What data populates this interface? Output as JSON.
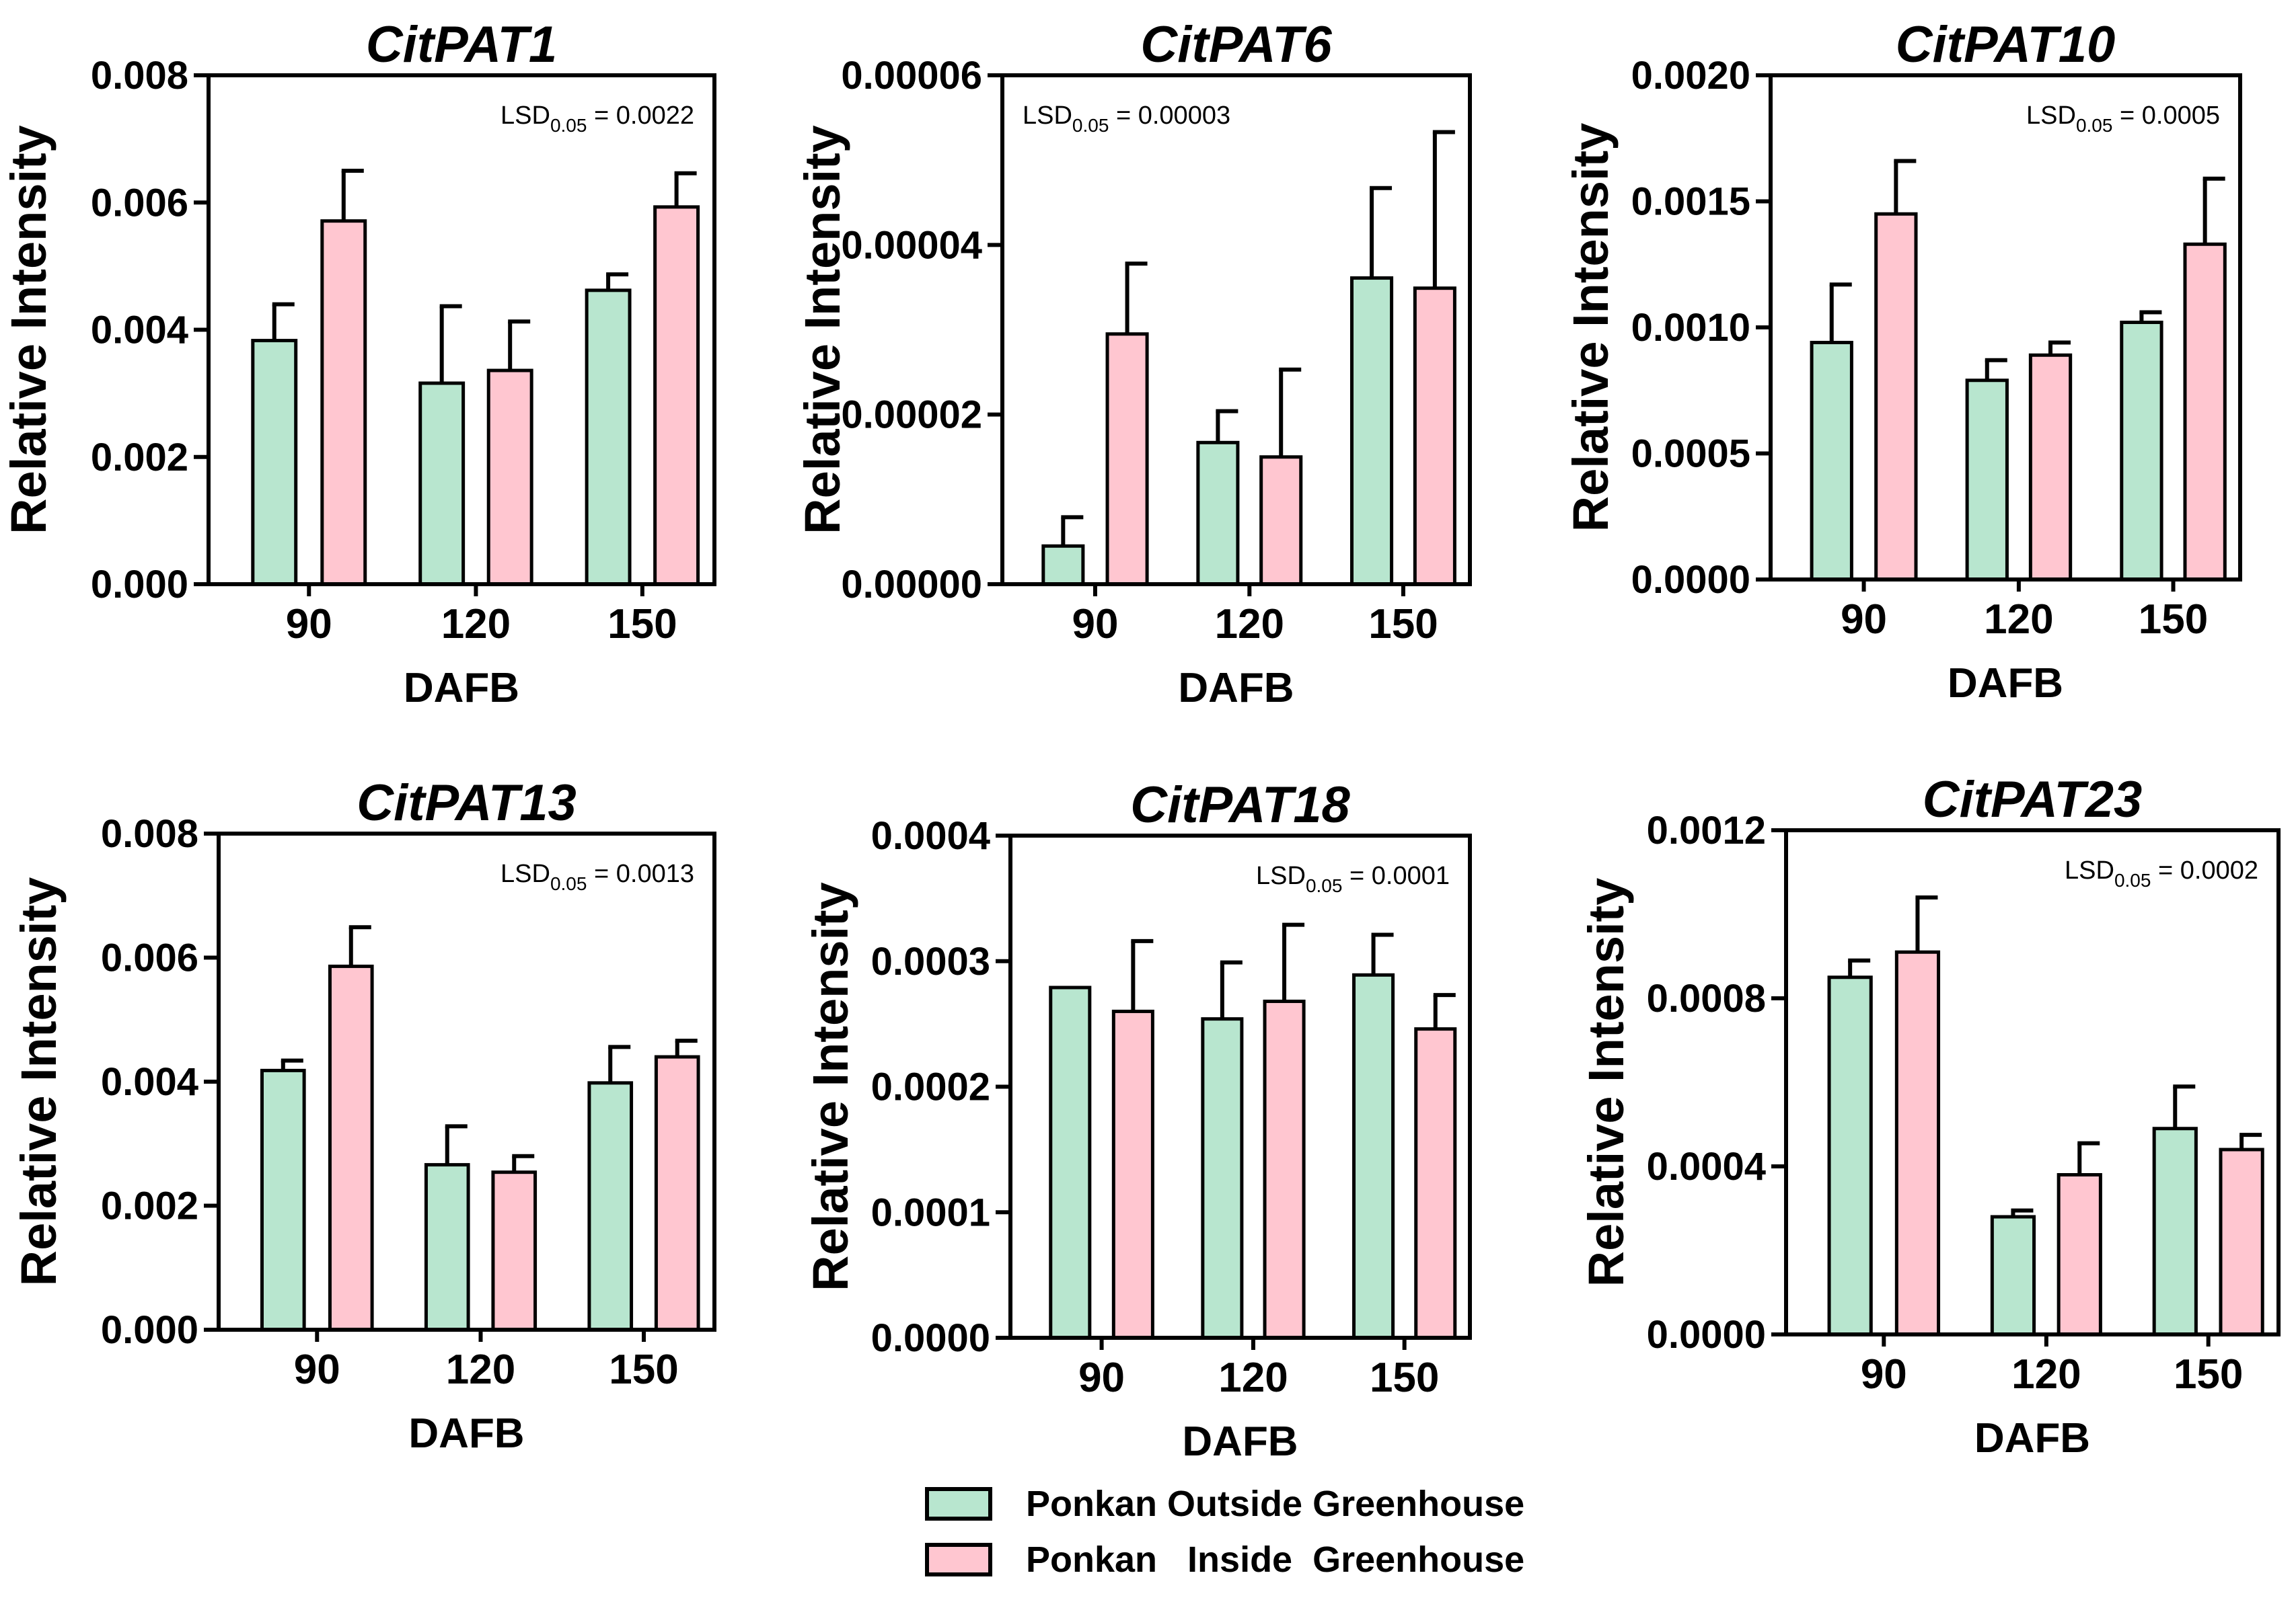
{
  "colors": {
    "outside": "#b8e6cf",
    "inside": "#ffc6d0",
    "stroke": "#000000"
  },
  "legend": {
    "items": [
      {
        "label": "Ponkan Outside Greenhouse",
        "series": "outside"
      },
      {
        "label": "Ponkan   Inside  Greenhouse",
        "series": "inside"
      }
    ]
  },
  "chart_data": [
    {
      "type": "bar",
      "title": "CitPAT1",
      "xlabel": "DAFB",
      "ylabel": "Relative Intensity",
      "categories": [
        "90",
        "120",
        "150"
      ],
      "ylim": [
        0,
        0.008
      ],
      "yticks": [
        "0.000",
        "0.002",
        "0.004",
        "0.006",
        "0.008"
      ],
      "lsd_prefix": "LSD",
      "lsd_sub": "0.05",
      "lsd_value": " = 0.0022",
      "lsd_pos": "top-right",
      "series": [
        {
          "name": "Ponkan Outside Greenhouse",
          "key": "outside",
          "values": [
            0.00383,
            0.00316,
            0.00462
          ],
          "errors": [
            0.00057,
            0.00121,
            0.00025
          ]
        },
        {
          "name": "Ponkan Inside Greenhouse",
          "key": "inside",
          "values": [
            0.00571,
            0.00336,
            0.00593
          ],
          "errors": [
            0.00079,
            0.00077,
            0.00053
          ]
        }
      ]
    },
    {
      "type": "bar",
      "title": "CitPAT6",
      "xlabel": "DAFB",
      "ylabel": "Relative Intensity",
      "categories": [
        "90",
        "120",
        "150"
      ],
      "ylim": [
        0,
        6e-05
      ],
      "yticks": [
        "0.00000",
        "0.00002",
        "0.00004",
        "0.00006"
      ],
      "lsd_prefix": "LSD",
      "lsd_sub": "0.05",
      "lsd_value": " = 0.00003",
      "lsd_pos": "top-left",
      "series": [
        {
          "name": "Ponkan Outside Greenhouse",
          "key": "outside",
          "values": [
            4.5e-06,
            1.67e-05,
            3.61e-05
          ],
          "errors": [
            3.4e-06,
            3.7e-06,
            1.06e-05
          ]
        },
        {
          "name": "Ponkan Inside Greenhouse",
          "key": "inside",
          "values": [
            2.95e-05,
            1.5e-05,
            3.49e-05
          ],
          "errors": [
            8.3e-06,
            1.03e-05,
            1.84e-05
          ]
        }
      ]
    },
    {
      "type": "bar",
      "title": "CitPAT10",
      "xlabel": "DAFB",
      "ylabel": "Relative Intensity",
      "categories": [
        "90",
        "120",
        "150"
      ],
      "ylim": [
        0,
        0.002
      ],
      "yticks": [
        "0.0000",
        "0.0005",
        "0.0010",
        "0.0015",
        "0.0020"
      ],
      "lsd_prefix": "LSD",
      "lsd_sub": "0.05",
      "lsd_value": " = 0.0005",
      "lsd_pos": "top-right",
      "series": [
        {
          "name": "Ponkan Outside Greenhouse",
          "key": "outside",
          "values": [
            0.00094,
            0.00079,
            0.00102
          ],
          "errors": [
            0.00023,
            8e-05,
            4e-05
          ]
        },
        {
          "name": "Ponkan Inside Greenhouse",
          "key": "inside",
          "values": [
            0.00145,
            0.00089,
            0.00133
          ],
          "errors": [
            0.00021,
            5e-05,
            0.00026
          ]
        }
      ]
    },
    {
      "type": "bar",
      "title": "CitPAT13",
      "xlabel": "DAFB",
      "ylabel": "Relative Intensity",
      "categories": [
        "90",
        "120",
        "150"
      ],
      "ylim": [
        0,
        0.008
      ],
      "yticks": [
        "0.000",
        "0.002",
        "0.004",
        "0.006",
        "0.008"
      ],
      "lsd_prefix": "LSD",
      "lsd_sub": "0.05",
      "lsd_value": " = 0.0013",
      "lsd_pos": "top-right",
      "series": [
        {
          "name": "Ponkan Outside Greenhouse",
          "key": "outside",
          "values": [
            0.00418,
            0.00266,
            0.00398
          ],
          "errors": [
            0.00016,
            0.00062,
            0.00058
          ]
        },
        {
          "name": "Ponkan Inside Greenhouse",
          "key": "inside",
          "values": [
            0.00586,
            0.00254,
            0.0044
          ],
          "errors": [
            0.00063,
            0.00026,
            0.00026
          ]
        }
      ]
    },
    {
      "type": "bar",
      "title": "CitPAT18",
      "xlabel": "DAFB",
      "ylabel": "Relative Intensity",
      "categories": [
        "90",
        "120",
        "150"
      ],
      "ylim": [
        0,
        0.0004
      ],
      "yticks": [
        "0.0000",
        "0.0001",
        "0.0002",
        "0.0003",
        "0.0004"
      ],
      "lsd_prefix": "LSD",
      "lsd_sub": "0.05",
      "lsd_value": " = 0.0001",
      "lsd_pos": "top-right",
      "series": [
        {
          "name": "Ponkan Outside Greenhouse",
          "key": "outside",
          "values": [
            0.000279,
            0.000254,
            0.000289
          ],
          "errors": [
            0,
            4.5e-05,
            3.2e-05
          ]
        },
        {
          "name": "Ponkan Inside Greenhouse",
          "key": "inside",
          "values": [
            0.00026,
            0.000268,
            0.000246
          ],
          "errors": [
            5.6e-05,
            6.1e-05,
            2.7e-05
          ]
        }
      ]
    },
    {
      "type": "bar",
      "title": "CitPAT23",
      "xlabel": "DAFB",
      "ylabel": "Relative Intensity",
      "categories": [
        "90",
        "120",
        "150"
      ],
      "ylim": [
        0,
        0.0012
      ],
      "yticks": [
        "0.0000",
        "0.0004",
        "0.0008",
        "0.0012"
      ],
      "lsd_prefix": "LSD",
      "lsd_sub": "0.05",
      "lsd_value": " = 0.0002",
      "lsd_pos": "top-right",
      "series": [
        {
          "name": "Ponkan Outside Greenhouse",
          "key": "outside",
          "values": [
            0.00085,
            0.00028,
            0.00049
          ],
          "errors": [
            4e-05,
            1.5e-05,
            0.0001
          ]
        },
        {
          "name": "Ponkan Inside Greenhouse",
          "key": "inside",
          "values": [
            0.00091,
            0.00038,
            0.00044
          ],
          "errors": [
            0.00013,
            7.5e-05,
            3.5e-05
          ]
        }
      ]
    }
  ]
}
